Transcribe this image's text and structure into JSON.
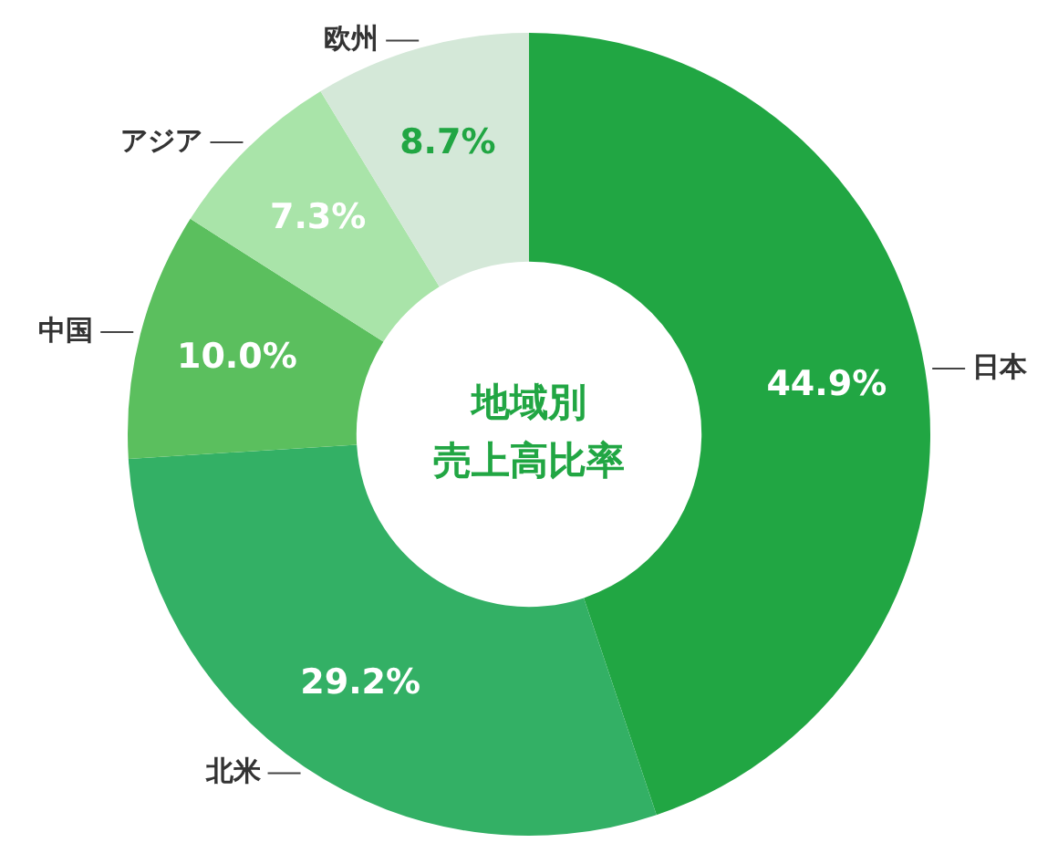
{
  "chart_data": {
    "type": "donut",
    "title": "地域別",
    "subtitle": "売上高比率",
    "categories": [
      "日本",
      "北米",
      "中国",
      "アジア",
      "欧州"
    ],
    "values": [
      44.9,
      29.2,
      10.0,
      7.3,
      8.7
    ],
    "colors": [
      "#21a643",
      "#33b065",
      "#5bbf5e",
      "#a9e4a9",
      "#d4e8d8"
    ],
    "value_labels": [
      "44.9%",
      "29.2%",
      "10.0%",
      "7.3%",
      "8.7%"
    ]
  }
}
